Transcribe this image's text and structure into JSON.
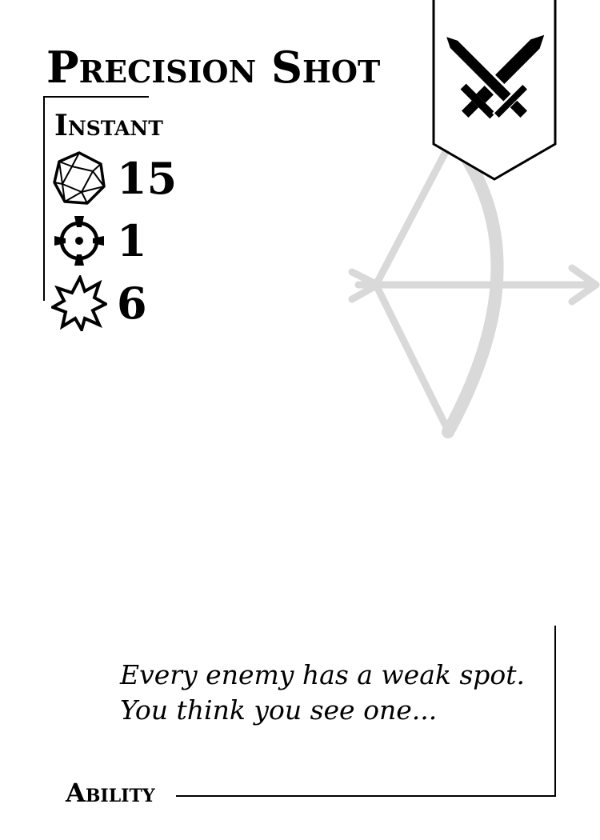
{
  "card": {
    "title": "Precision Shot",
    "type": "Instant",
    "stats": {
      "difficulty": {
        "icon": "d20-icon",
        "value": "15"
      },
      "range": {
        "icon": "crosshair-icon",
        "value": "1"
      },
      "damage": {
        "icon": "impact-burst-icon",
        "value": "6"
      }
    },
    "class_emblem_icon": "crossed-swords-icon",
    "art_icon": "bow-and-arrow-icon",
    "flavor_text": "Every enemy has a weak spot. You think you see one...",
    "category": "Ability"
  },
  "colors": {
    "ink": "#000000",
    "art": "#d9d9d9",
    "background": "#ffffff"
  }
}
